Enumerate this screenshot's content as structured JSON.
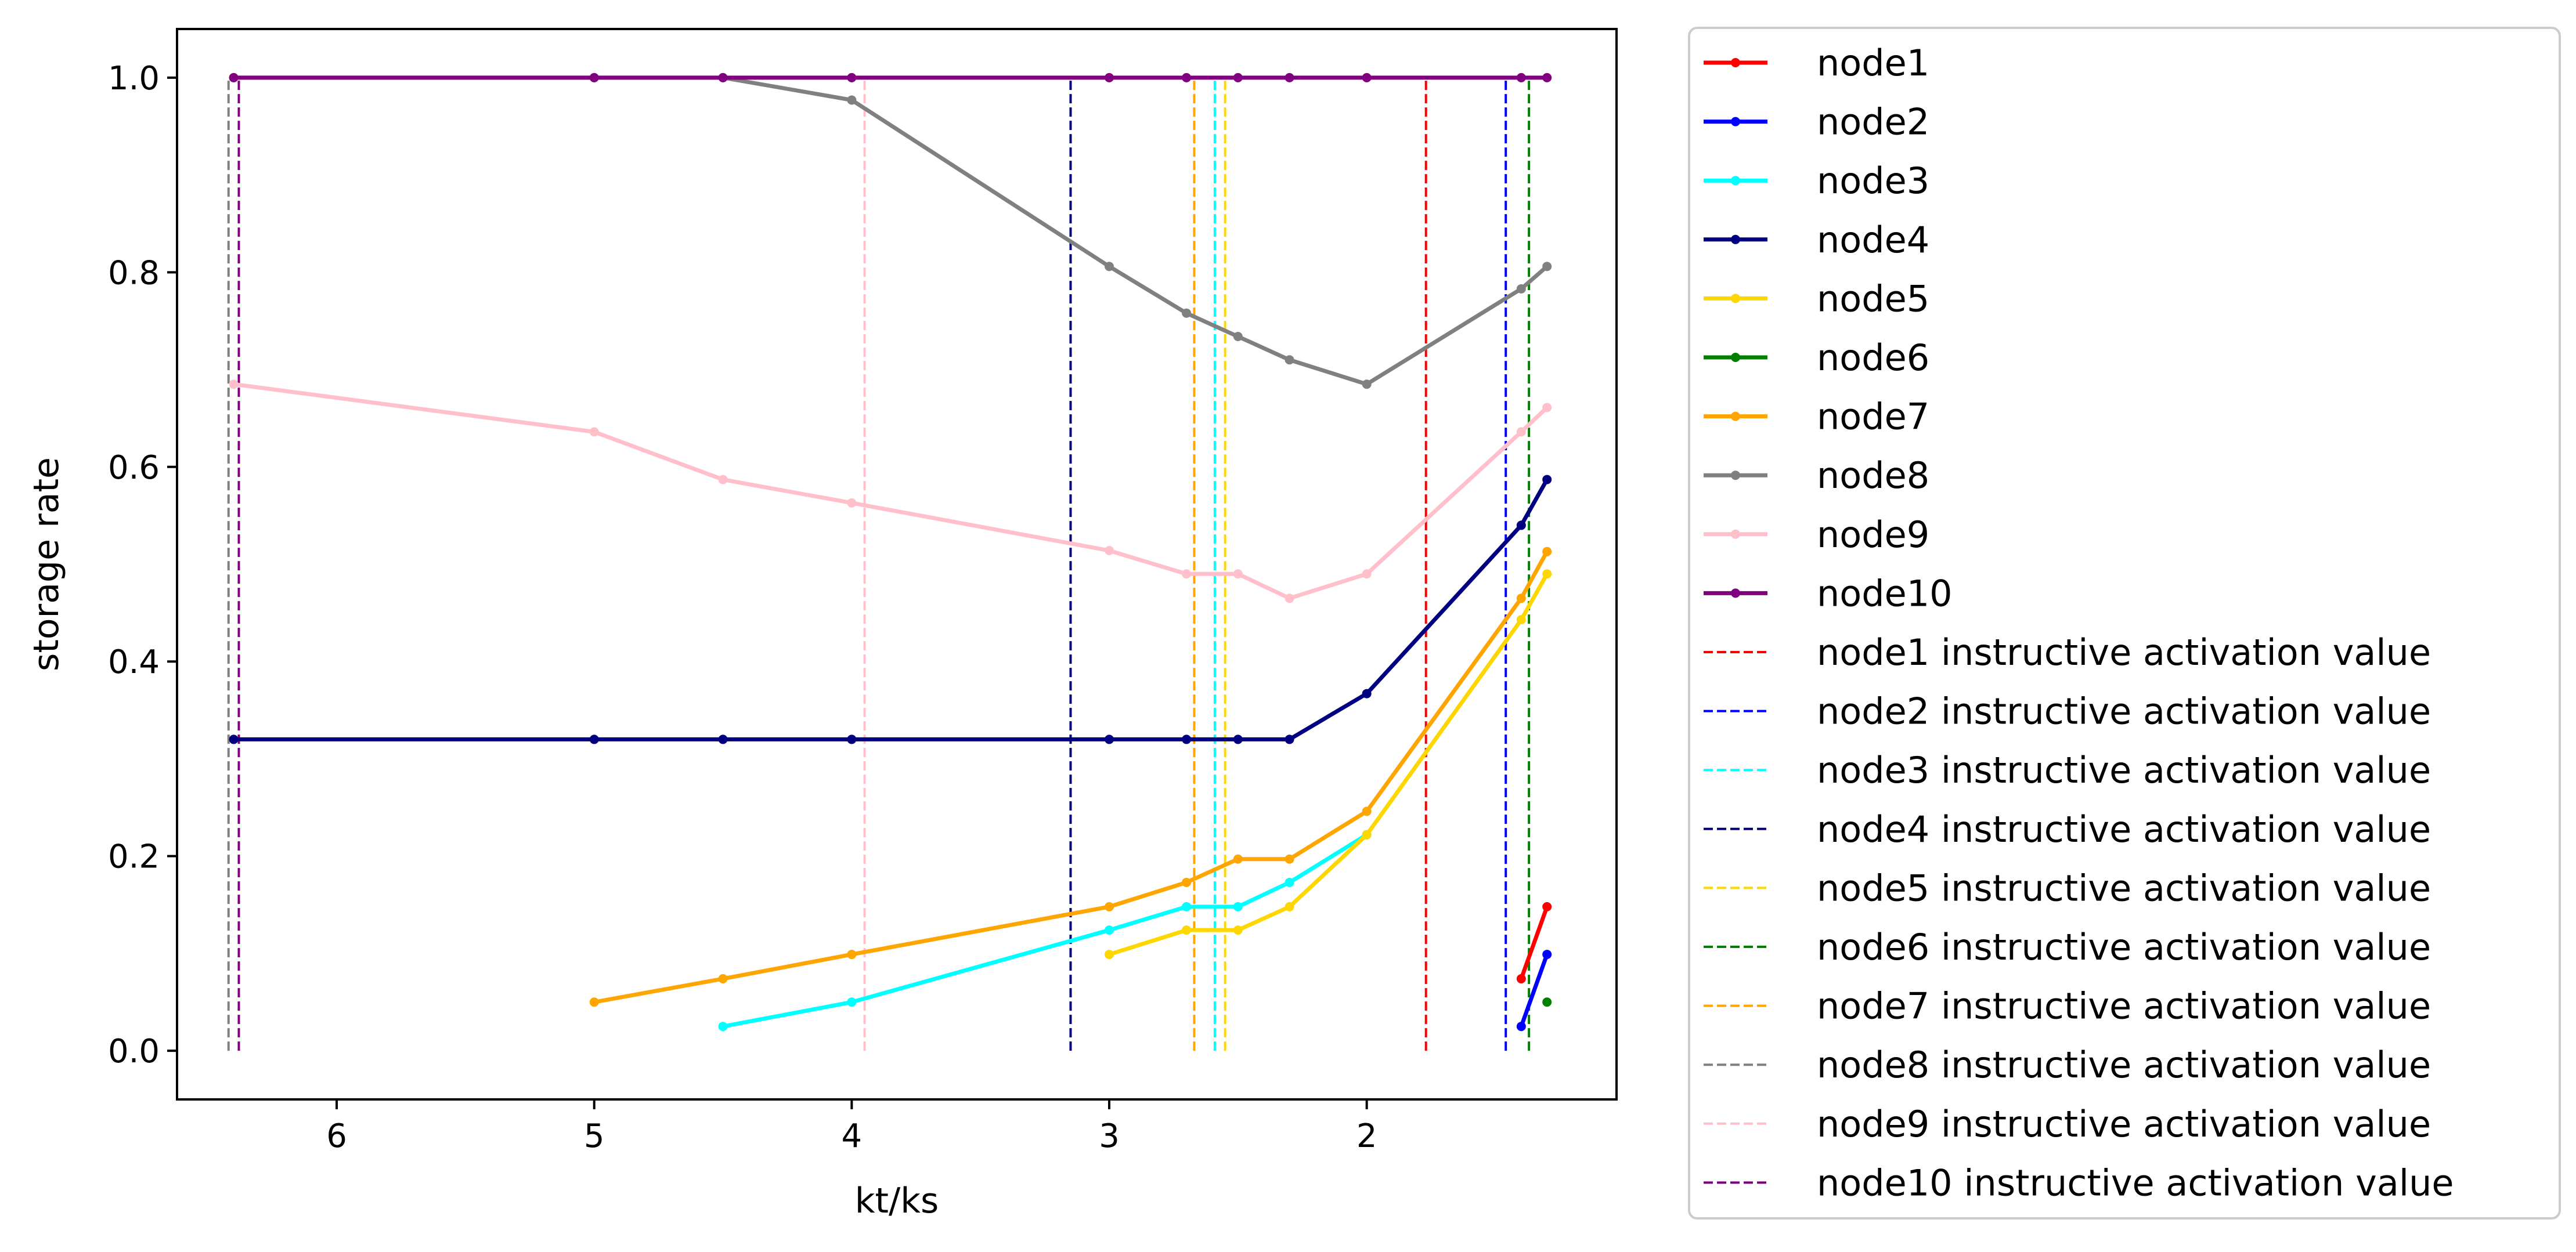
{
  "chart_data": {
    "type": "line",
    "title": "",
    "xlabel": "kt/ks",
    "ylabel": "storage rate",
    "x_inverted": true,
    "xlim": [
      6.62,
      1.03
    ],
    "ylim": [
      -0.05,
      1.05
    ],
    "xticks": [
      6,
      5,
      4,
      3,
      2
    ],
    "yticks": [
      0.0,
      0.2,
      0.4,
      0.6,
      0.8,
      1.0
    ],
    "grid": false,
    "legend_position": "outside-right",
    "series": [
      {
        "name": "node1",
        "color": "#ff0000",
        "x": [
          1.4,
          1.3
        ],
        "y": [
          0.074,
          0.148
        ]
      },
      {
        "name": "node2",
        "color": "#0000ff",
        "x": [
          1.4,
          1.3
        ],
        "y": [
          0.025,
          0.099
        ]
      },
      {
        "name": "node3",
        "color": "#00ffff",
        "x": [
          4.5,
          4.0,
          3.0,
          2.7,
          2.5,
          2.3,
          2.0
        ],
        "y": [
          0.025,
          0.05,
          0.124,
          0.148,
          0.148,
          0.173,
          0.222
        ]
      },
      {
        "name": "node4",
        "color": "#000080",
        "x": [
          6.4,
          5.0,
          4.5,
          4.0,
          3.0,
          2.7,
          2.5,
          2.3,
          2.0,
          1.4,
          1.3
        ],
        "y": [
          0.32,
          0.32,
          0.32,
          0.32,
          0.32,
          0.32,
          0.32,
          0.32,
          0.367,
          0.54,
          0.587
        ]
      },
      {
        "name": "node5",
        "color": "#ffd700",
        "x": [
          3.0,
          2.7,
          2.5,
          2.3,
          2.0,
          1.4,
          1.3
        ],
        "y": [
          0.099,
          0.124,
          0.124,
          0.148,
          0.222,
          0.443,
          0.49
        ]
      },
      {
        "name": "node6",
        "color": "#008000",
        "x": [
          1.3
        ],
        "y": [
          0.05
        ]
      },
      {
        "name": "node7",
        "color": "#ffa500",
        "x": [
          5.0,
          4.5,
          4.0,
          3.0,
          2.7,
          2.5,
          2.3,
          2.0,
          1.4,
          1.3
        ],
        "y": [
          0.05,
          0.074,
          0.099,
          0.148,
          0.173,
          0.197,
          0.197,
          0.246,
          0.465,
          0.513
        ]
      },
      {
        "name": "node8",
        "color": "#808080",
        "x": [
          6.4,
          5.0,
          4.5,
          4.0,
          3.0,
          2.7,
          2.5,
          2.3,
          2.0,
          1.4,
          1.3
        ],
        "y": [
          1.0,
          1.0,
          1.0,
          0.977,
          0.806,
          0.758,
          0.734,
          0.71,
          0.685,
          0.783,
          0.806
        ]
      },
      {
        "name": "node9",
        "color": "#ffc0cb",
        "x": [
          6.4,
          5.0,
          4.5,
          4.0,
          3.0,
          2.7,
          2.5,
          2.3,
          2.0,
          1.4,
          1.3
        ],
        "y": [
          0.685,
          0.636,
          0.587,
          0.563,
          0.514,
          0.49,
          0.49,
          0.465,
          0.49,
          0.636,
          0.661
        ]
      },
      {
        "name": "node10",
        "color": "#800080",
        "x": [
          6.4,
          5.0,
          4.5,
          4.0,
          3.0,
          2.7,
          2.5,
          2.3,
          2.0,
          1.4,
          1.3
        ],
        "y": [
          1.0,
          1.0,
          1.0,
          1.0,
          1.0,
          1.0,
          1.0,
          1.0,
          1.0,
          1.0,
          1.0
        ]
      }
    ],
    "vlines": [
      {
        "name": "node1 instructive activation value",
        "color": "#ff0000",
        "x": 1.77,
        "ymin": 0.0,
        "ymax": 1.0
      },
      {
        "name": "node2 instructive activation value",
        "color": "#0000ff",
        "x": 1.46,
        "ymin": 0.0,
        "ymax": 1.0
      },
      {
        "name": "node3 instructive activation value",
        "color": "#00ffff",
        "x": 2.59,
        "ymin": 0.0,
        "ymax": 1.0
      },
      {
        "name": "node4 instructive activation value",
        "color": "#000080",
        "x": 3.15,
        "ymin": 0.0,
        "ymax": 1.0
      },
      {
        "name": "node5 instructive activation value",
        "color": "#ffd700",
        "x": 2.55,
        "ymin": 0.0,
        "ymax": 1.0
      },
      {
        "name": "node6 instructive activation value",
        "color": "#008000",
        "x": 1.37,
        "ymin": 0.0,
        "ymax": 1.0
      },
      {
        "name": "node7 instructive activation value",
        "color": "#ffa500",
        "x": 2.67,
        "ymin": 0.0,
        "ymax": 1.0
      },
      {
        "name": "node8 instructive activation value",
        "color": "#808080",
        "x": 6.42,
        "ymin": 0.0,
        "ymax": 1.0
      },
      {
        "name": "node9 instructive activation value",
        "color": "#ffc0cb",
        "x": 3.95,
        "ymin": 0.0,
        "ymax": 1.0
      },
      {
        "name": "node10 instructive activation value",
        "color": "#800080",
        "x": 6.38,
        "ymin": 0.0,
        "ymax": 1.0
      }
    ]
  }
}
